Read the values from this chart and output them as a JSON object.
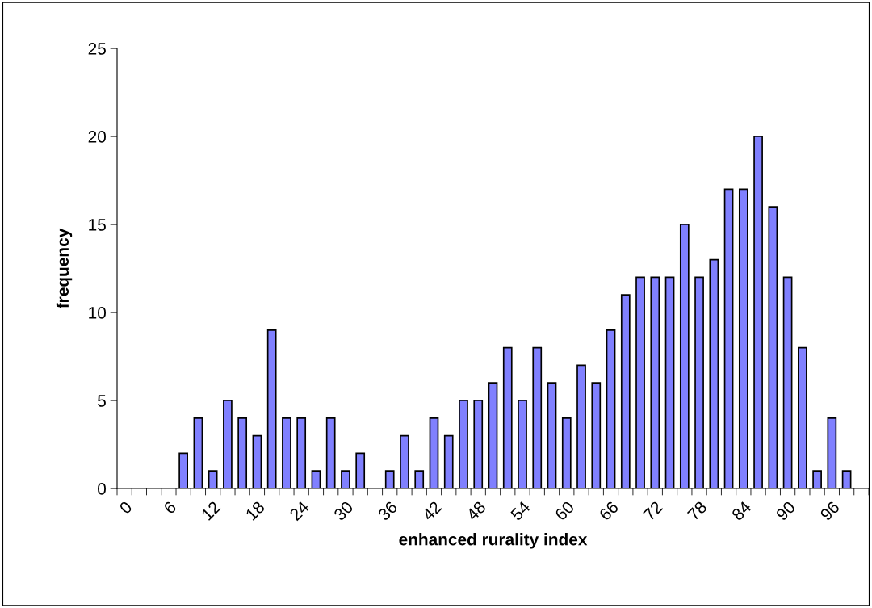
{
  "chart_data": {
    "type": "bar",
    "xlabel": "enhanced rurality index",
    "ylabel": "frequency",
    "categories": [
      "0",
      null,
      null,
      "6",
      null,
      null,
      "12",
      null,
      null,
      "18",
      null,
      null,
      "24",
      null,
      null,
      "30",
      null,
      null,
      "36",
      null,
      null,
      "42",
      null,
      null,
      "48",
      null,
      null,
      "54",
      null,
      null,
      "60",
      null,
      null,
      "66",
      null,
      null,
      "72",
      null,
      null,
      "78",
      null,
      null,
      "84",
      null,
      null,
      "90",
      null,
      null,
      "96",
      null,
      null
    ],
    "values": [
      0,
      0,
      0,
      0,
      2,
      4,
      1,
      5,
      4,
      3,
      9,
      4,
      4,
      1,
      4,
      1,
      2,
      0,
      1,
      3,
      1,
      4,
      3,
      5,
      5,
      6,
      8,
      5,
      8,
      6,
      4,
      7,
      6,
      9,
      11,
      12,
      12,
      12,
      15,
      12,
      13,
      17,
      17,
      20,
      16,
      12,
      8,
      1,
      4,
      1,
      0
    ],
    "color": "#8080ff",
    "ylim": [
      0,
      25
    ],
    "yticks": [
      0,
      5,
      10,
      15,
      20,
      25
    ],
    "grid": false,
    "legend": false
  }
}
